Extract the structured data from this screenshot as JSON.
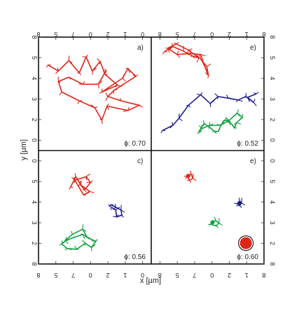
{
  "chart_data": {
    "type": "scatter",
    "title": "",
    "xlabel": "x [µm]",
    "ylabel": "y [µm]",
    "xlim": [
      0,
      6
    ],
    "ylim": [
      0,
      6
    ],
    "tick_labels_top": [
      "8",
      "5",
      "7",
      "0",
      "2",
      "1",
      "0",
      "8",
      "5",
      "7",
      "0",
      "2",
      "1",
      "8"
    ],
    "tick_labels_bottom": [
      "8",
      "5",
      "7",
      "0",
      "2",
      "1",
      "0",
      "8",
      "5",
      "7",
      "0",
      "2",
      "1",
      "8"
    ],
    "tick_labels_side": [
      "8",
      "5",
      "4",
      "3",
      "2",
      "0",
      "0",
      "5",
      "4",
      "3",
      "2",
      "8"
    ],
    "colors": {
      "red": "#e02418",
      "blue": "#1c1c8c",
      "green": "#14a040",
      "frame": "#111111"
    },
    "panels": [
      {
        "letter": "a)",
        "phi_label": "ϕ: 0.70",
        "trajectories": [
          {
            "color": "red",
            "points": [
              [
                0.3,
                4.65
              ],
              [
                0.9,
                4.3
              ],
              [
                1.5,
                4.9
              ],
              [
                2.1,
                4.2
              ],
              [
                2.5,
                5.1
              ],
              [
                2.85,
                4.3
              ],
              [
                3.3,
                4.85
              ],
              [
                3.6,
                4.1
              ],
              [
                4.3,
                3.5
              ],
              [
                3.4,
                3.1
              ],
              [
                4.6,
                3.9
              ],
              [
                4.9,
                4.45
              ],
              [
                5.35,
                4.0
              ],
              [
                4.1,
                3.2
              ],
              [
                3.75,
                2.85
              ],
              [
                4.5,
                2.6
              ],
              [
                5.55,
                2.35
              ],
              [
                4.9,
                2.05
              ],
              [
                3.7,
                2.3
              ],
              [
                3.4,
                1.5
              ],
              [
                3.0,
                2.2
              ],
              [
                2.1,
                2.6
              ],
              [
                1.1,
                3.1
              ],
              [
                0.9,
                3.7
              ],
              [
                1.5,
                3.95
              ],
              [
                2.3,
                3.55
              ],
              [
                3.2,
                3.55
              ],
              [
                3.65,
                4.35
              ]
            ]
          }
        ]
      },
      {
        "letter": "e)",
        "phi_label": "ϕ: 0.52",
        "trajectories": [
          {
            "color": "red",
            "points": [
              [
                0.5,
                5.4
              ],
              [
                1.0,
                5.7
              ],
              [
                1.6,
                5.45
              ],
              [
                2.15,
                5.15
              ],
              [
                2.55,
                5.05
              ],
              [
                2.95,
                4.55
              ],
              [
                3.05,
                4.05
              ],
              [
                2.8,
                4.65
              ],
              [
                2.6,
                5.25
              ],
              [
                2.0,
                5.3
              ],
              [
                1.25,
                5.25
              ],
              [
                0.7,
                5.6
              ],
              [
                1.2,
                5.85
              ],
              [
                1.9,
                5.5
              ],
              [
                2.5,
                5.05
              ]
            ]
          },
          {
            "color": "blue",
            "points": [
              [
                0.4,
                0.9
              ],
              [
                1.0,
                1.2
              ],
              [
                1.35,
                1.6
              ],
              [
                1.9,
                2.35
              ],
              [
                2.6,
                2.95
              ],
              [
                3.15,
                2.45
              ],
              [
                3.6,
                2.85
              ],
              [
                4.2,
                2.75
              ],
              [
                4.75,
                2.65
              ],
              [
                5.2,
                2.85
              ],
              [
                5.65,
                2.5
              ],
              [
                5.3,
                2.8
              ],
              [
                5.8,
                3.0
              ]
            ]
          },
          {
            "color": "green",
            "points": [
              [
                2.5,
                0.85
              ],
              [
                2.8,
                1.3
              ],
              [
                3.1,
                1.1
              ],
              [
                3.4,
                0.85
              ],
              [
                3.6,
                0.85
              ],
              [
                3.9,
                1.45
              ],
              [
                4.2,
                1.5
              ],
              [
                4.55,
                1.05
              ],
              [
                4.65,
                1.35
              ],
              [
                5.0,
                1.65
              ],
              [
                4.7,
                1.9
              ],
              [
                4.2,
                1.45
              ],
              [
                3.7,
                1.2
              ],
              [
                3.1,
                1.2
              ],
              [
                2.65,
                1.0
              ]
            ]
          }
        ]
      },
      {
        "letter": "c)",
        "phi_label": "ϕ: 0.56",
        "trajectories": [
          {
            "color": "red",
            "points": [
              [
                1.6,
                4.15
              ],
              [
                1.9,
                4.75
              ],
              [
                2.2,
                4.25
              ],
              [
                2.4,
                4.0
              ],
              [
                2.75,
                4.4
              ],
              [
                2.5,
                4.75
              ],
              [
                1.85,
                4.55
              ],
              [
                2.35,
                3.7
              ],
              [
                2.7,
                3.9
              ],
              [
                2.15,
                4.3
              ]
            ]
          },
          {
            "color": "blue",
            "points": [
              [
                3.9,
                3.15
              ],
              [
                4.2,
                3.0
              ],
              [
                4.5,
                2.85
              ],
              [
                4.55,
                2.55
              ],
              [
                4.25,
                2.45
              ],
              [
                4.2,
                2.85
              ],
              [
                3.95,
                3.0
              ]
            ]
          },
          {
            "color": "green",
            "points": [
              [
                1.3,
                1.1
              ],
              [
                1.7,
                1.45
              ],
              [
                2.3,
                1.75
              ],
              [
                2.55,
                1.3
              ],
              [
                3.05,
                1.05
              ],
              [
                2.8,
                0.7
              ],
              [
                2.45,
                0.95
              ],
              [
                1.95,
                0.6
              ],
              [
                1.4,
                0.65
              ],
              [
                1.1,
                0.9
              ],
              [
                1.3,
                1.1
              ],
              [
                2.3,
                1.45
              ],
              [
                3.0,
                1.05
              ]
            ]
          }
        ]
      },
      {
        "letter": "e)",
        "phi_label": "ϕ: 0.60",
        "trajectories": [
          {
            "color": "red",
            "points": [
              [
                1.8,
                4.75
              ],
              [
                2.05,
                4.9
              ],
              [
                2.15,
                4.65
              ],
              [
                1.95,
                4.55
              ],
              [
                1.85,
                4.75
              ]
            ]
          },
          {
            "color": "blue",
            "points": [
              [
                4.75,
                3.2
              ],
              [
                4.85,
                3.35
              ],
              [
                4.95,
                3.25
              ],
              [
                4.85,
                3.1
              ],
              [
                4.75,
                3.2
              ]
            ]
          },
          {
            "color": "green",
            "points": [
              [
                3.2,
                2.1
              ],
              [
                3.45,
                2.25
              ],
              [
                3.65,
                2.1
              ],
              [
                3.5,
                1.95
              ],
              [
                3.25,
                2.0
              ]
            ]
          }
        ],
        "marker": {
          "color": "red",
          "x": 5.2,
          "y": 0.95
        }
      }
    ]
  }
}
